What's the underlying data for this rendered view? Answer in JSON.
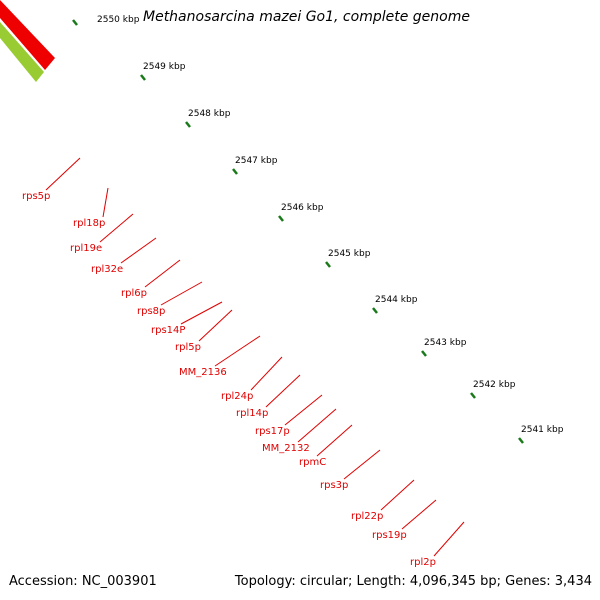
{
  "title": "Methanosarcina mazei Go1, complete genome",
  "footer": {
    "accession": "Accession: NC_003901",
    "topology": "Topology: circular; Length: 4,096,345 bp; Genes: 3,434"
  },
  "colors": {
    "gene_dark": "#ee0000",
    "gene_light": "#f08080",
    "backbone": "#808080",
    "ticks": "#1a7a1a",
    "labels": "#e00000",
    "upstream_feature": "#99cc33"
  },
  "scale_ticks": [
    "2550 kbp",
    "2549 kbp",
    "2548 kbp",
    "2547 kbp",
    "2546 kbp",
    "2545 kbp",
    "2544 kbp",
    "2543 kbp",
    "2542 kbp",
    "2541 kbp"
  ],
  "gene_labels": [
    "rps5p",
    "rpl18p",
    "rpl19e",
    "rpl32e",
    "rpl6p",
    "rps8p",
    "rps14P",
    "rpl5p",
    "MM_2136",
    "rpl24p",
    "rpl14p",
    "rps17p",
    "MM_2132",
    "rpmC",
    "rps3p",
    "rpl22p",
    "rps19p",
    "rpl2p"
  ]
}
